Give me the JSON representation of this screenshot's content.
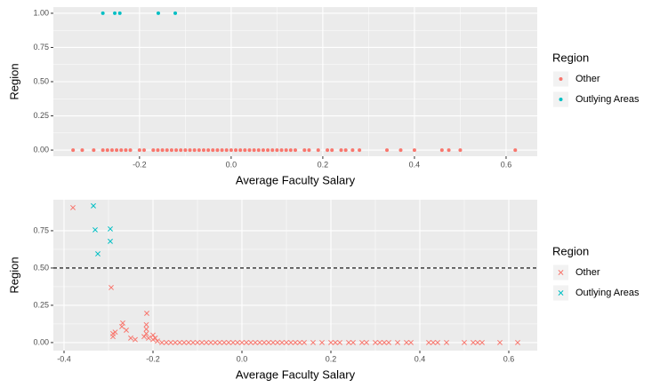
{
  "chart_data": [
    {
      "type": "scatter",
      "xlabel": "Average Faculty Salary",
      "ylabel": "Region",
      "marker": "circle",
      "xlim": [
        -0.388,
        0.668
      ],
      "ylim": [
        -0.045,
        1.045
      ],
      "xticks": [
        -0.2,
        {
          "value": 0,
          "label": "0.0"
        },
        0.2,
        0.4,
        0.6
      ],
      "yticks": [
        {
          "value": 0,
          "label": "0.00"
        },
        0.25,
        {
          "value": 0.5,
          "label": "0.50"
        },
        0.75,
        {
          "value": 1,
          "label": "1.00"
        }
      ],
      "grid": true,
      "legend_title": "Region",
      "series": [
        {
          "name": "Other",
          "color": "#F8766D",
          "x": [
            -0.345,
            -0.325,
            -0.3,
            -0.28,
            -0.27,
            -0.26,
            -0.25,
            -0.24,
            -0.23,
            -0.22,
            -0.2,
            -0.19,
            -0.17,
            -0.16,
            -0.15,
            -0.14,
            -0.13,
            -0.12,
            -0.11,
            -0.1,
            -0.09,
            -0.08,
            -0.07,
            -0.06,
            -0.05,
            -0.04,
            -0.03,
            -0.02,
            -0.01,
            0,
            0.01,
            0.02,
            0.03,
            0.04,
            0.05,
            0.06,
            0.07,
            0.08,
            0.09,
            0.1,
            0.11,
            0.12,
            0.13,
            0.14,
            0.16,
            0.17,
            0.19,
            0.21,
            0.22,
            0.24,
            0.25,
            0.265,
            0.28,
            0.34,
            0.37,
            0.4,
            0.46,
            0.475,
            0.5,
            0.62
          ],
          "values": [
            0,
            0,
            0,
            0,
            0,
            0,
            0,
            0,
            0,
            0,
            0,
            0,
            0,
            0,
            0,
            0,
            0,
            0,
            0,
            0,
            0,
            0,
            0,
            0,
            0,
            0,
            0,
            0,
            0,
            0,
            0,
            0,
            0,
            0,
            0,
            0,
            0,
            0,
            0,
            0,
            0,
            0,
            0,
            0,
            0,
            0,
            0,
            0,
            0,
            0,
            0,
            0,
            0,
            0,
            0,
            0,
            0,
            0,
            0,
            0
          ]
        },
        {
          "name": "Outlying Areas",
          "color": "#00BFC4",
          "x": [
            -0.28,
            -0.254,
            -0.243,
            -0.159,
            -0.122
          ],
          "values": [
            1,
            1,
            1,
            1,
            1
          ]
        }
      ]
    },
    {
      "type": "scatter",
      "xlabel": "Average Faculty Salary",
      "ylabel": "Region",
      "marker": "cross",
      "xlim": [
        -0.424,
        0.664
      ],
      "ylim": [
        -0.054,
        0.958
      ],
      "xticks": [
        -0.4,
        -0.2,
        {
          "value": 0,
          "label": "0.0"
        },
        0.2,
        0.4,
        0.6
      ],
      "yticks": [
        {
          "value": 0,
          "label": "0.00"
        },
        0.25,
        {
          "value": 0.5,
          "label": "0.50"
        },
        0.75
      ],
      "grid": true,
      "legend_title": "Region",
      "hline": 0.5,
      "series": [
        {
          "name": "Other",
          "color": "#F8766D",
          "x": [
            -0.38,
            -0.294,
            -0.214,
            -0.268,
            -0.27,
            -0.26,
            -0.25,
            -0.24,
            -0.29,
            -0.29,
            -0.285,
            -0.215,
            -0.215,
            -0.215,
            -0.22,
            -0.21,
            -0.2,
            -0.2,
            -0.195,
            -0.19,
            -0.18,
            -0.17,
            -0.16,
            -0.15,
            -0.14,
            -0.13,
            -0.12,
            -0.11,
            -0.1,
            -0.09,
            -0.08,
            -0.07,
            -0.06,
            -0.05,
            -0.04,
            -0.03,
            -0.02,
            -0.01,
            0,
            0.01,
            0.02,
            0.03,
            0.04,
            0.05,
            0.06,
            0.07,
            0.08,
            0.09,
            0.1,
            0.11,
            0.12,
            0.13,
            0.14,
            0.16,
            0.18,
            0.2,
            0.21,
            0.22,
            0.24,
            0.25,
            0.27,
            0.28,
            0.3,
            0.31,
            0.32,
            0.33,
            0.35,
            0.37,
            0.38,
            0.42,
            0.43,
            0.44,
            0.46,
            0.5,
            0.52,
            0.53,
            0.54,
            0.58,
            0.62
          ],
          "values": [
            0.905,
            0.369,
            0.196,
            0.131,
            0.107,
            0.083,
            0.03,
            0.02,
            0.06,
            0.04,
            0.07,
            0.12,
            0.09,
            0.06,
            0.04,
            0.03,
            0.05,
            0.02,
            0.03,
            0.01,
            0,
            0,
            0,
            0,
            0,
            0,
            0,
            0,
            0,
            0,
            0,
            0,
            0,
            0,
            0,
            0,
            0,
            0,
            0,
            0,
            0,
            0,
            0,
            0,
            0,
            0,
            0,
            0,
            0,
            0,
            0,
            0,
            0,
            0,
            0,
            0,
            0,
            0,
            0,
            0,
            0,
            0,
            0,
            0,
            0,
            0,
            0,
            0,
            0,
            0,
            0,
            0,
            0,
            0,
            0,
            0,
            0,
            0,
            0
          ]
        },
        {
          "name": "Outlying Areas",
          "color": "#00BFC4",
          "x": [
            -0.334,
            -0.33,
            -0.296,
            -0.296,
            -0.324
          ],
          "values": [
            0.917,
            0.756,
            0.762,
            0.679,
            0.595
          ]
        }
      ]
    }
  ]
}
